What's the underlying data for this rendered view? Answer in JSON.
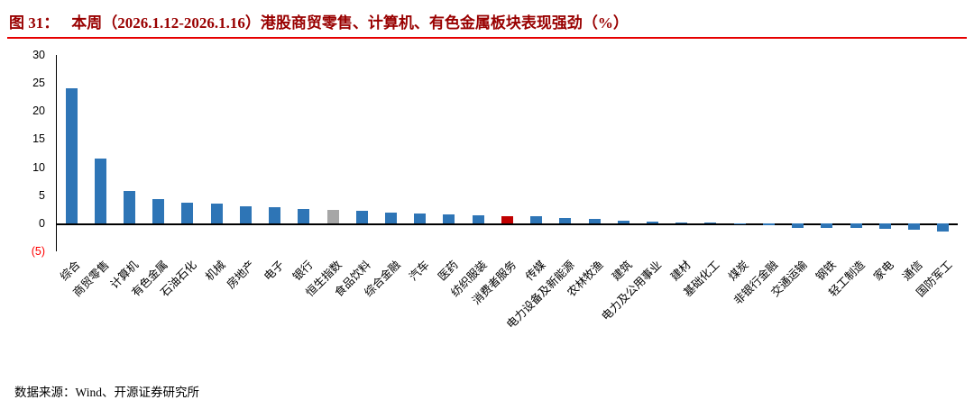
{
  "header": {
    "figure_label": "图 31：",
    "title": "本周（2026.1.12-2026.1.16）港股商贸零售、计算机、有色金属板块表现强劲（%）",
    "accent_color": "#990000",
    "underline_color": "#e60000"
  },
  "chart_data": {
    "type": "bar",
    "title": "本周（2026.1.12-2026.1.16）港股商贸零售、计算机、有色金属板块表现强劲（%）",
    "xlabel": "",
    "ylabel": "",
    "ylim": [
      -5,
      30
    ],
    "grid": false,
    "legend": null,
    "yticks": [
      30,
      25,
      20,
      15,
      10,
      5,
      0,
      -5
    ],
    "ytick_labels": [
      "30",
      "25",
      "20",
      "15",
      "10",
      "5",
      "0",
      "(5)"
    ],
    "negative_tick_color": "#ff0000",
    "bar_default_color": "#2e75b6",
    "bar_special_colors": {
      "9": "#a6a6a6",
      "15": "#c00000"
    },
    "categories": [
      "综合",
      "商贸零售",
      "计算机",
      "有色金属",
      "石油石化",
      "机械",
      "房地产",
      "电子",
      "银行",
      "恒生指数",
      "食品饮料",
      "综合金融",
      "汽车",
      "医药",
      "纺织服装",
      "消费者服务",
      "传媒",
      "电力设备及新能源",
      "农林牧渔",
      "建筑",
      "电力及公用事业",
      "建材",
      "基础化工",
      "煤炭",
      "非银行金融",
      "交通运输",
      "钢铁",
      "轻工制造",
      "家电",
      "通信",
      "国防军工"
    ],
    "values": [
      24.0,
      11.6,
      5.8,
      4.3,
      3.7,
      3.5,
      3.0,
      2.8,
      2.5,
      2.4,
      2.2,
      1.9,
      1.7,
      1.6,
      1.5,
      1.3,
      1.2,
      1.0,
      0.8,
      0.5,
      0.3,
      0.2,
      0.1,
      -0.1,
      -0.3,
      -0.8,
      -0.8,
      -0.9,
      -1.0,
      -1.1,
      -1.5
    ]
  },
  "footer": {
    "source": "数据来源：Wind、开源证券研究所"
  }
}
